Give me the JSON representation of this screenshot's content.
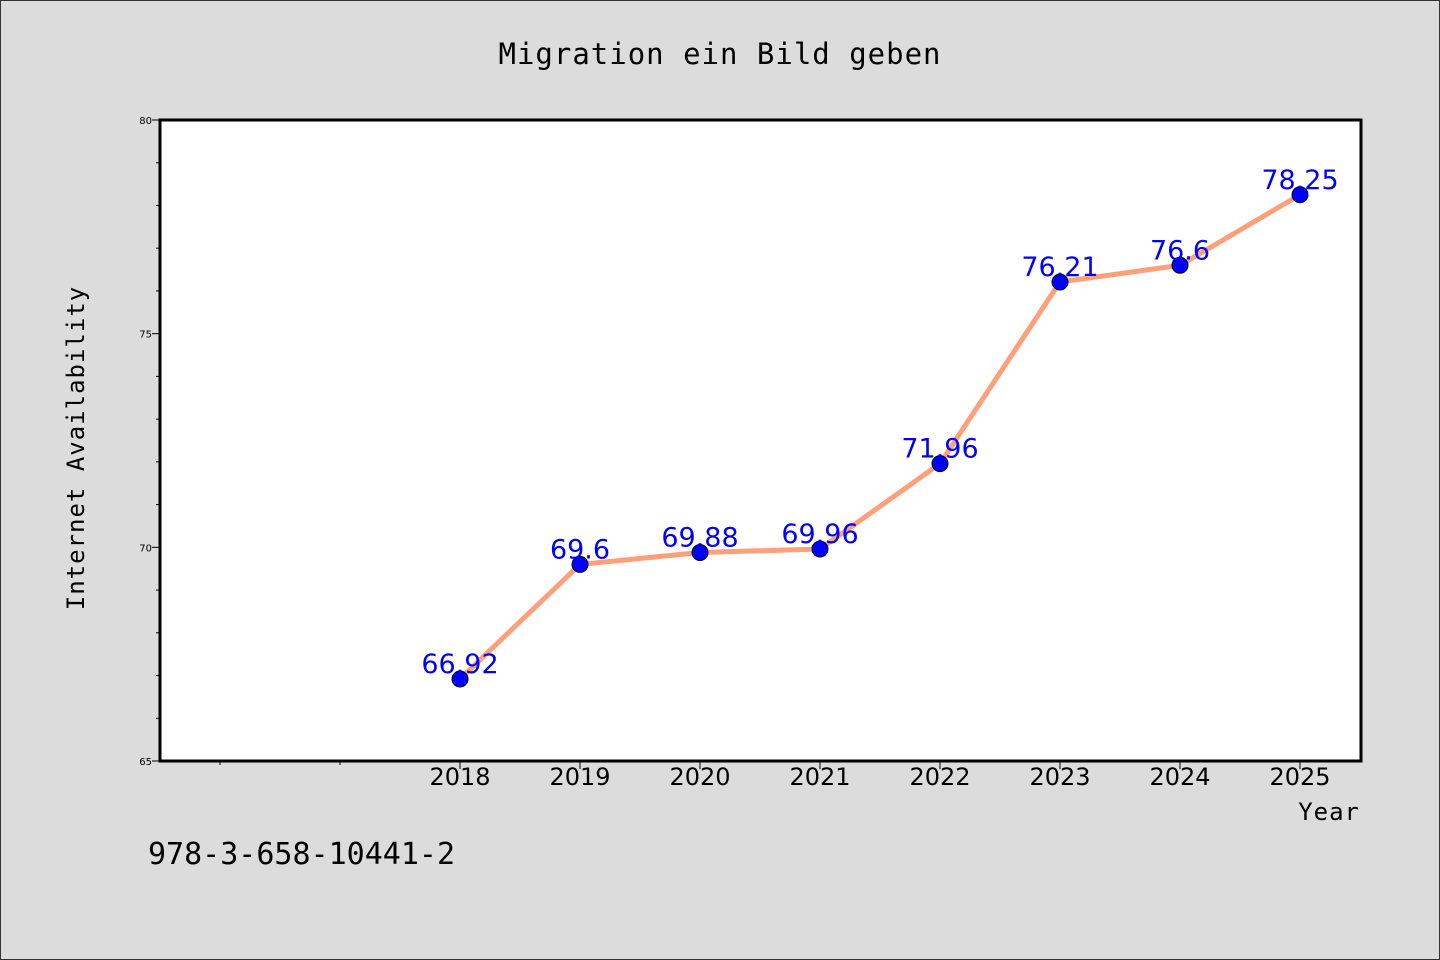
{
  "chart_data": {
    "type": "line",
    "title": "Migration ein Bild geben",
    "xlabel": "Year",
    "ylabel": "Internet Availability",
    "categories": [
      "2018",
      "2019",
      "2020",
      "2021",
      "2022",
      "2023",
      "2024",
      "2025"
    ],
    "series": [
      {
        "values": [
          66.92,
          69.6,
          69.88,
          69.96,
          71.96,
          76.21,
          76.6,
          78.25
        ],
        "labels": [
          "66.92",
          "69.6",
          "69.88",
          "69.96",
          "71.96",
          "76.21",
          "76.6",
          "78.25"
        ]
      }
    ],
    "ylim": [
      65,
      80
    ],
    "yticks": [
      "65",
      "70",
      "75",
      "80"
    ],
    "line_color": "#ffa07a",
    "marker_color": "#0000ff",
    "label_color": "#0000ff",
    "grid": false,
    "legend": "none"
  },
  "footer": {
    "isbn": "978-3-658-10441-2"
  }
}
